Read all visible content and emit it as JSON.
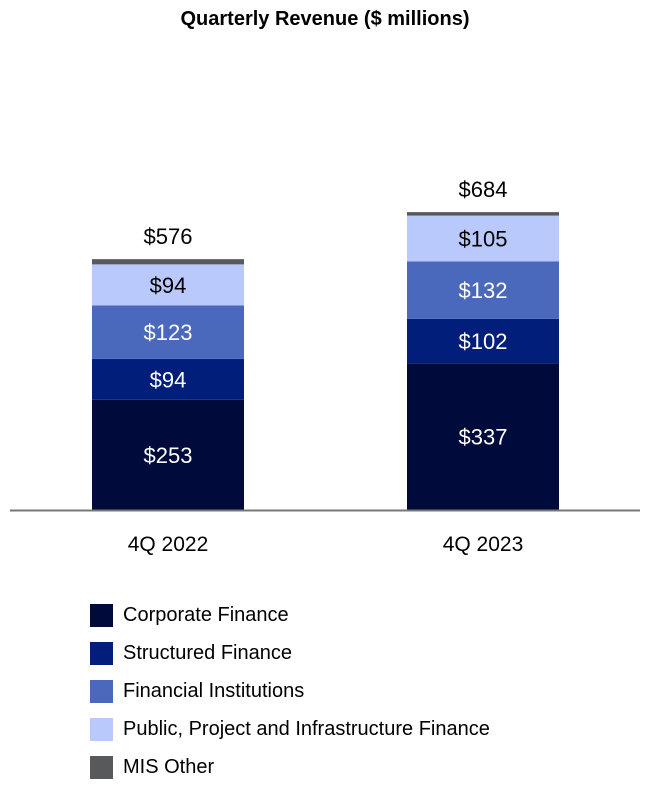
{
  "chart_data": {
    "type": "bar",
    "stacked": true,
    "title": "Quarterly Revenue ($ millions)",
    "categories": [
      "4Q 2022",
      "4Q 2023"
    ],
    "totals": [
      576,
      684
    ],
    "total_labels": [
      "$576",
      "$684"
    ],
    "series": [
      {
        "name": "Corporate Finance",
        "color": "#000b3b",
        "label_color": "#ffffff",
        "values": [
          253,
          337
        ],
        "labels": [
          "$253",
          "$337"
        ]
      },
      {
        "name": "Structured Finance",
        "color": "#001e7a",
        "label_color": "#ffffff",
        "values": [
          94,
          102
        ],
        "labels": [
          "$94",
          "$102"
        ]
      },
      {
        "name": "Financial Institutions",
        "color": "#4a68bc",
        "label_color": "#ffffff",
        "values": [
          123,
          132
        ],
        "labels": [
          "$123",
          "$132"
        ]
      },
      {
        "name": "Public, Project and Infrastructure Finance",
        "color": "#b9c9fb",
        "label_color": "#000000",
        "values": [
          94,
          105
        ],
        "labels": [
          "$94",
          "$105"
        ]
      },
      {
        "name": "MIS Other",
        "color": "#58595b",
        "label_color": "#000000",
        "values": [
          12,
          8
        ],
        "labels": [
          "",
          ""
        ]
      }
    ],
    "legend_position": "bottom",
    "grid": false
  }
}
